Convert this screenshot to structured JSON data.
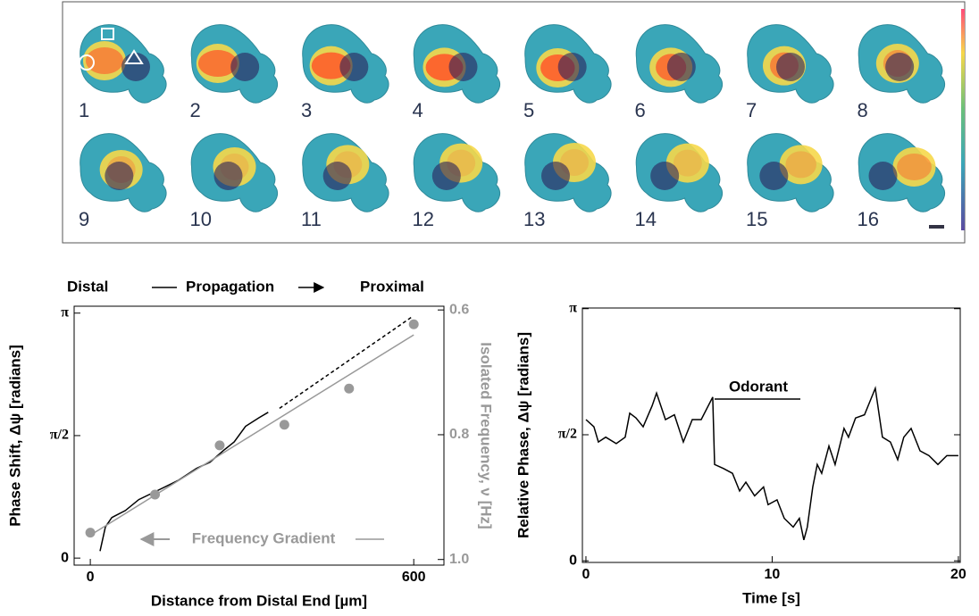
{
  "image_panel": {
    "frame_labels": [
      "1",
      "2",
      "3",
      "4",
      "5",
      "6",
      "7",
      "8",
      "9",
      "10",
      "11",
      "12",
      "13",
      "14",
      "15",
      "16"
    ]
  },
  "chart_data": [
    {
      "type": "line",
      "annotations": [
        "Distal",
        "Propagation",
        "Proximal",
        "Frequency Gradient"
      ],
      "xlabel": "Distance from Distal End [µm]",
      "ylabel": "Phase Shift, Δψ [radians]",
      "y2label": "Isolated Frequency, ν [Hz]",
      "xlim": [
        -30,
        656
      ],
      "xticks": [
        0,
        600
      ],
      "ylim": [
        -0.09,
        3.23
      ],
      "yticks": [
        0,
        {
          "value": 1.5708,
          "label": "π/2"
        },
        {
          "value": 3.1416,
          "label": "π"
        }
      ],
      "y2lim": [
        1.009,
        0.594
      ],
      "y2ticks": [
        0.6,
        0.8,
        {
          "value": 1,
          "label": "1.0"
        }
      ],
      "series": [
        {
          "color": "#000000",
          "x": [
            18,
            28,
            40,
            65,
            90,
            123,
            164,
            197,
            222,
            247,
            267,
            288,
            313,
            330
          ],
          "values": [
            0.09,
            0.4,
            0.52,
            0.61,
            0.75,
            0.86,
            1.0,
            1.15,
            1.23,
            1.38,
            1.49,
            1.69,
            1.8,
            1.87
          ]
        },
        {
          "color": "#000000",
          "dashed": true,
          "x": [
            351,
            598
          ],
          "values": [
            1.92,
            3.1
          ]
        },
        {
          "color": "#999999",
          "axis": "y2",
          "x": [
            0,
            600
          ],
          "values": [
            0.961,
            0.64
          ]
        },
        {
          "color": "#999999",
          "axis": "y2",
          "marker": "circle",
          "x": [
            0,
            120,
            240,
            360,
            480,
            600
          ],
          "values": [
            0.957,
            0.896,
            0.817,
            0.784,
            0.726,
            0.623
          ]
        }
      ]
    },
    {
      "type": "line",
      "annotations": [
        "Odorant"
      ],
      "xlabel": "Time [s]",
      "ylabel": "Relative Phase, Δψ [radians]",
      "xlim": [
        -0.19,
        20.1
      ],
      "xticks": [
        0,
        10,
        20
      ],
      "ylim": [
        -0.02,
        3.15
      ],
      "yticks": [
        0,
        {
          "value": 1.5708,
          "label": "π/2"
        },
        {
          "value": 3.1416,
          "label": "π"
        }
      ],
      "series": [
        {
          "color": "#000000",
          "x": [
            0,
            0.43,
            0.67,
            1.06,
            1.63,
            2.11,
            2.35,
            2.69,
            3.07,
            3.55,
            3.79,
            4.27,
            4.75,
            5.23,
            5.71,
            6.19,
            6.81,
            6.91,
            7.39,
            7.87,
            8.25,
            8.59,
            9.06,
            9.54,
            9.78,
            10.26,
            10.65,
            11.13,
            11.46,
            11.7,
            11.89,
            12.18,
            12.42,
            12.66,
            13.05,
            13.38,
            13.86,
            14.1,
            14.48,
            14.96,
            15.54,
            15.92,
            16.35,
            16.74,
            17.07,
            17.46,
            17.94,
            18.42,
            18.9,
            19.38,
            20.0
          ],
          "values": [
            1.76,
            1.67,
            1.48,
            1.54,
            1.46,
            1.54,
            1.84,
            1.78,
            1.67,
            1.93,
            2.09,
            1.76,
            1.82,
            1.48,
            1.76,
            1.76,
            2.04,
            1.2,
            1.15,
            1.09,
            0.87,
            0.98,
            0.81,
            0.92,
            0.7,
            0.76,
            0.53,
            0.42,
            0.53,
            0.26,
            0.42,
            0.92,
            1.2,
            1.09,
            1.43,
            1.2,
            1.65,
            1.54,
            1.78,
            1.82,
            2.15,
            1.54,
            1.48,
            1.26,
            1.54,
            1.65,
            1.37,
            1.31,
            1.2,
            1.31,
            1.31
          ]
        }
      ]
    }
  ]
}
